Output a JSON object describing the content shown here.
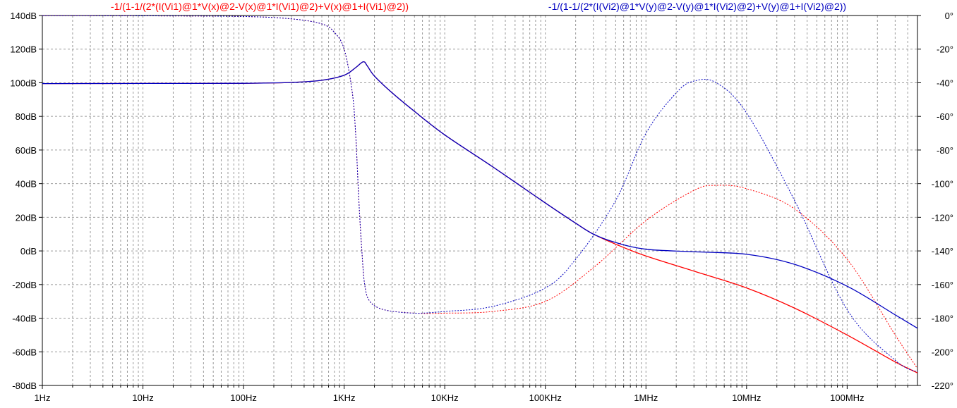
{
  "chart_data": {
    "type": "line",
    "x_scale": "log",
    "x_unit": "Hz",
    "xlim": [
      1,
      500000000
    ],
    "ylim_left": [
      -80,
      140
    ],
    "ylim_right": [
      -220,
      0
    ],
    "grid": true,
    "x_ticks": [
      {
        "value": 1,
        "label": "1Hz"
      },
      {
        "value": 10,
        "label": "10Hz"
      },
      {
        "value": 100,
        "label": "100Hz"
      },
      {
        "value": 1000,
        "label": "1KHz"
      },
      {
        "value": 10000,
        "label": "10KHz"
      },
      {
        "value": 100000,
        "label": "100KHz"
      },
      {
        "value": 1000000,
        "label": "1MHz"
      },
      {
        "value": 10000000,
        "label": "10MHz"
      },
      {
        "value": 100000000,
        "label": "100MHz"
      }
    ],
    "y_left_ticks": [
      {
        "value": 140,
        "label": "140dB"
      },
      {
        "value": 120,
        "label": "120dB"
      },
      {
        "value": 100,
        "label": "100dB"
      },
      {
        "value": 80,
        "label": "80dB"
      },
      {
        "value": 60,
        "label": "60dB"
      },
      {
        "value": 40,
        "label": "40dB"
      },
      {
        "value": 20,
        "label": "20dB"
      },
      {
        "value": 0,
        "label": "0dB"
      },
      {
        "value": -20,
        "label": "-20dB"
      },
      {
        "value": -40,
        "label": "-40dB"
      },
      {
        "value": -60,
        "label": "-60dB"
      },
      {
        "value": -80,
        "label": "-80dB"
      }
    ],
    "y_right_ticks": [
      {
        "value": 0,
        "label": "0°"
      },
      {
        "value": -20,
        "label": "-20°"
      },
      {
        "value": -40,
        "label": "-40°"
      },
      {
        "value": -60,
        "label": "-60°"
      },
      {
        "value": -80,
        "label": "-80°"
      },
      {
        "value": -100,
        "label": "-100°"
      },
      {
        "value": -120,
        "label": "-120°"
      },
      {
        "value": -140,
        "label": "-140°"
      },
      {
        "value": -160,
        "label": "-160°"
      },
      {
        "value": -180,
        "label": "-180°"
      },
      {
        "value": -200,
        "label": "-200°"
      },
      {
        "value": -220,
        "label": "-220°"
      }
    ],
    "series": [
      {
        "name": "-1/(1-1/(2*(I(Vi1)@1*V(x)@2-V(x)@1*I(Vi1)@2)+V(x)@1+I(Vi1)@2))",
        "color": "#ff0000",
        "magnitude": [
          [
            1,
            99.5
          ],
          [
            10,
            99.6
          ],
          [
            100,
            99.7
          ],
          [
            300,
            100.2
          ],
          [
            600,
            101.5
          ],
          [
            1000,
            104.5
          ],
          [
            1300,
            109
          ],
          [
            1550,
            112.5
          ],
          [
            1700,
            110
          ],
          [
            2000,
            104
          ],
          [
            3000,
            94
          ],
          [
            5000,
            83
          ],
          [
            10000,
            69
          ],
          [
            30000,
            50
          ],
          [
            100000,
            28.5
          ],
          [
            200000,
            16.5
          ],
          [
            300000,
            10
          ],
          [
            500000,
            4
          ],
          [
            1000000,
            -3
          ],
          [
            3000000,
            -12
          ],
          [
            10000000,
            -22
          ],
          [
            30000000,
            -34
          ],
          [
            100000000,
            -50
          ],
          [
            300000000,
            -66
          ],
          [
            500000000,
            -72.5
          ]
        ],
        "phase": [
          [
            1,
            -0.1
          ],
          [
            10,
            -0.2
          ],
          [
            100,
            -0.6
          ],
          [
            300,
            -2
          ],
          [
            600,
            -5
          ],
          [
            800,
            -10
          ],
          [
            1000,
            -20
          ],
          [
            1200,
            -45
          ],
          [
            1300,
            -70
          ],
          [
            1400,
            -110
          ],
          [
            1500,
            -140
          ],
          [
            1600,
            -160
          ],
          [
            1800,
            -170
          ],
          [
            2500,
            -175
          ],
          [
            5000,
            -177
          ],
          [
            10000,
            -177
          ],
          [
            30000,
            -176
          ],
          [
            100000,
            -170
          ],
          [
            300000,
            -150
          ],
          [
            1000000,
            -122
          ],
          [
            3000000,
            -104
          ],
          [
            5000000,
            -101
          ],
          [
            10000000,
            -103
          ],
          [
            30000000,
            -115
          ],
          [
            100000000,
            -145
          ],
          [
            300000000,
            -190
          ],
          [
            500000000,
            -210
          ]
        ]
      },
      {
        "name": "-1/(1-1/(2*(I(Vi2)@1*V(y)@2-V(y)@1*I(Vi2)@2)+V(y)@1+I(Vi2)@2))",
        "color": "#0000c0",
        "magnitude": [
          [
            1,
            99.5
          ],
          [
            10,
            99.6
          ],
          [
            100,
            99.7
          ],
          [
            300,
            100.2
          ],
          [
            600,
            101.5
          ],
          [
            1000,
            104.5
          ],
          [
            1300,
            109
          ],
          [
            1550,
            112.5
          ],
          [
            1700,
            110
          ],
          [
            2000,
            104
          ],
          [
            3000,
            94
          ],
          [
            5000,
            83
          ],
          [
            10000,
            69
          ],
          [
            30000,
            50
          ],
          [
            100000,
            28.5
          ],
          [
            200000,
            16.5
          ],
          [
            300000,
            10
          ],
          [
            500000,
            5
          ],
          [
            1000000,
            1
          ],
          [
            3000000,
            -0.5
          ],
          [
            10000000,
            -2
          ],
          [
            30000000,
            -8
          ],
          [
            100000000,
            -21
          ],
          [
            300000000,
            -38
          ],
          [
            500000000,
            -46
          ]
        ],
        "phase": [
          [
            1,
            -0.1
          ],
          [
            10,
            -0.2
          ],
          [
            100,
            -0.6
          ],
          [
            300,
            -2
          ],
          [
            600,
            -5
          ],
          [
            800,
            -10
          ],
          [
            1000,
            -20
          ],
          [
            1200,
            -45
          ],
          [
            1300,
            -70
          ],
          [
            1400,
            -110
          ],
          [
            1500,
            -140
          ],
          [
            1600,
            -160
          ],
          [
            1800,
            -170
          ],
          [
            2500,
            -175
          ],
          [
            5000,
            -177
          ],
          [
            10000,
            -176
          ],
          [
            30000,
            -173
          ],
          [
            100000,
            -162
          ],
          [
            200000,
            -145
          ],
          [
            500000,
            -110
          ],
          [
            1000000,
            -70
          ],
          [
            2000000,
            -46
          ],
          [
            3000000,
            -39
          ],
          [
            5000000,
            -40
          ],
          [
            10000000,
            -58
          ],
          [
            30000000,
            -110
          ],
          [
            100000000,
            -175
          ],
          [
            300000000,
            -205
          ],
          [
            500000000,
            -212
          ]
        ]
      }
    ]
  }
}
